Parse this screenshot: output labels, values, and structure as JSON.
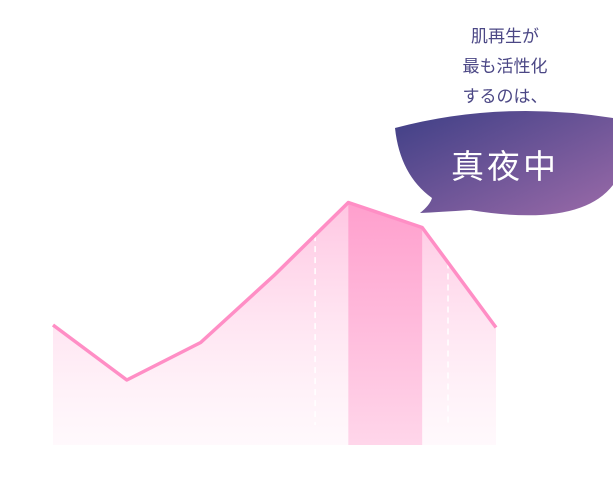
{
  "chart_data": {
    "type": "line",
    "annotation": [
      "肌再生が",
      "最も活性化",
      "するのは、"
    ],
    "callout": "真夜中",
    "categories": [
      null,
      null,
      null,
      null,
      null,
      null,
      null
    ],
    "values": [
      48,
      26,
      41,
      68,
      97,
      87,
      47
    ],
    "color": "#ff8ec5",
    "ylim": [
      0,
      100
    ],
    "highlight_index": 4
  }
}
